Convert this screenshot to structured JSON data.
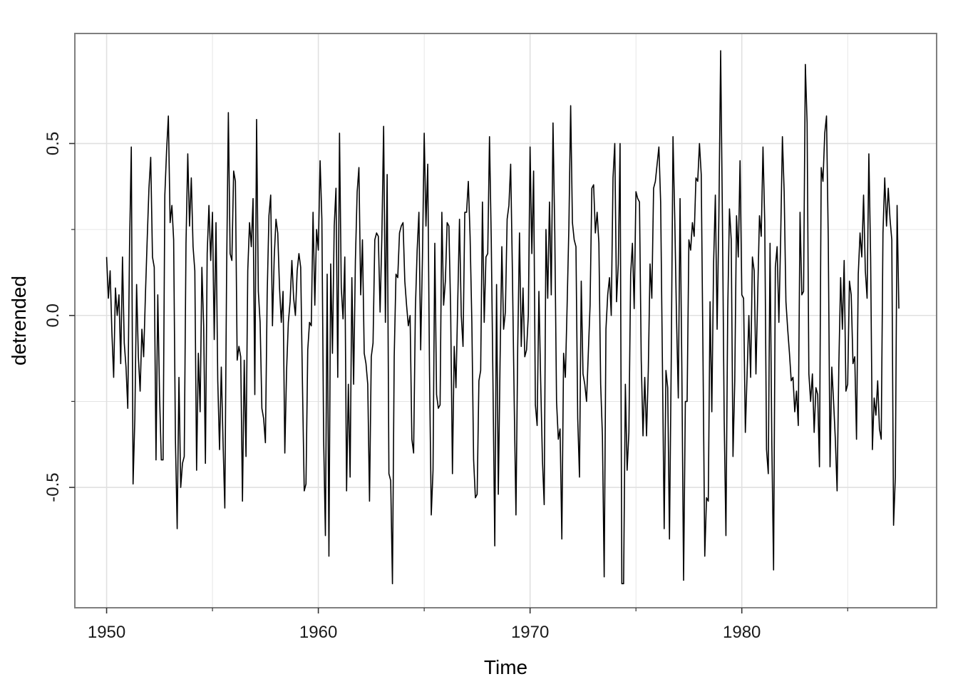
{
  "chart_data": {
    "type": "line",
    "xlabel": "Time",
    "ylabel": "detrended",
    "xlim": [
      1948.5,
      1989.2
    ],
    "ylim": [
      -0.85,
      0.82
    ],
    "x_ticks": [
      1950,
      1960,
      1970,
      1980
    ],
    "x_tick_labels": [
      "1950",
      "1960",
      "1970",
      "1980"
    ],
    "x_minor_ticks": [
      1955,
      1965,
      1975,
      1985
    ],
    "y_ticks": [
      -0.5,
      0.0,
      0.5
    ],
    "y_tick_labels": [
      "-0.5",
      "0.0",
      "0.5"
    ],
    "y_minor_ticks": [
      -0.25,
      0.25
    ],
    "grid": true,
    "colors": {
      "line": "#000000",
      "grid": "#e0e0e0",
      "panel_border": "#7f7f7f",
      "background": "#ffffff"
    },
    "series": [
      {
        "x_start": 1950.0,
        "x_step": 0.0833333,
        "values": [
          0.17,
          0.05,
          0.13,
          -0.05,
          -0.18,
          0.08,
          0.0,
          0.06,
          -0.14,
          0.17,
          -0.08,
          -0.15,
          -0.27,
          0.2,
          0.49,
          -0.49,
          -0.3,
          0.09,
          -0.12,
          -0.22,
          -0.04,
          -0.12,
          0.06,
          0.22,
          0.37,
          0.46,
          0.17,
          0.14,
          -0.42,
          0.06,
          -0.23,
          -0.42,
          -0.42,
          0.35,
          0.48,
          0.58,
          0.27,
          0.32,
          0.22,
          -0.36,
          -0.62,
          -0.18,
          -0.5,
          -0.43,
          -0.41,
          0.21,
          0.47,
          0.26,
          0.4,
          0.2,
          0.13,
          -0.45,
          -0.11,
          -0.28,
          0.14,
          -0.03,
          -0.43,
          0.18,
          0.32,
          0.16,
          0.3,
          -0.07,
          0.27,
          -0.19,
          -0.39,
          -0.15,
          -0.37,
          -0.56,
          0.12,
          0.59,
          0.18,
          0.16,
          0.42,
          0.39,
          -0.13,
          -0.09,
          -0.12,
          -0.54,
          -0.13,
          -0.41,
          0.13,
          0.27,
          0.2,
          0.34,
          -0.23,
          0.57,
          0.07,
          -0.02,
          -0.27,
          -0.3,
          -0.37,
          0.06,
          0.29,
          0.35,
          -0.03,
          0.17,
          0.28,
          0.24,
          0.08,
          -0.02,
          0.07,
          -0.4,
          -0.16,
          -0.02,
          0.04,
          0.16,
          0.05,
          0.0,
          0.13,
          0.18,
          0.14,
          -0.2,
          -0.51,
          -0.49,
          -0.1,
          -0.02,
          -0.03,
          0.3,
          0.03,
          0.25,
          0.19,
          0.45,
          0.28,
          -0.36,
          -0.64,
          0.12,
          -0.7,
          0.15,
          -0.11,
          0.26,
          0.37,
          -0.18,
          0.53,
          0.08,
          -0.01,
          0.17,
          -0.51,
          -0.2,
          -0.47,
          0.11,
          -0.2,
          0.16,
          0.36,
          0.43,
          0.06,
          0.22,
          -0.11,
          -0.14,
          -0.2,
          -0.54,
          -0.12,
          -0.08,
          0.22,
          0.24,
          0.23,
          0.01,
          0.23,
          0.55,
          -0.02,
          0.41,
          -0.46,
          -0.48,
          -0.78,
          -0.12,
          0.12,
          0.11,
          0.24,
          0.26,
          0.27,
          0.1,
          0.03,
          -0.03,
          0.0,
          -0.36,
          -0.4,
          0.02,
          0.19,
          0.3,
          -0.1,
          0.17,
          0.53,
          0.26,
          0.44,
          -0.16,
          -0.58,
          -0.45,
          0.21,
          -0.23,
          -0.27,
          -0.26,
          0.3,
          0.03,
          0.1,
          0.27,
          0.26,
          0.01,
          -0.46,
          -0.09,
          -0.21,
          0.04,
          0.28,
          0.0,
          -0.09,
          0.3,
          0.3,
          0.39,
          0.23,
          -0.02,
          -0.42,
          -0.53,
          -0.52,
          -0.19,
          -0.16,
          0.33,
          -0.02,
          0.17,
          0.18,
          0.52,
          0.22,
          -0.21,
          -0.67,
          0.09,
          -0.52,
          -0.13,
          0.2,
          -0.04,
          0.01,
          0.28,
          0.32,
          0.44,
          0.12,
          -0.25,
          -0.58,
          -0.09,
          0.24,
          -0.09,
          0.08,
          -0.12,
          -0.1,
          0.0,
          0.49,
          0.18,
          0.42,
          -0.26,
          -0.32,
          0.07,
          -0.19,
          -0.42,
          -0.55,
          0.25,
          0.05,
          0.33,
          0.06,
          0.56,
          0.24,
          -0.25,
          -0.36,
          -0.33,
          -0.65,
          -0.11,
          -0.18,
          0.03,
          0.26,
          0.61,
          0.27,
          0.22,
          0.2,
          -0.3,
          -0.47,
          0.1,
          -0.17,
          -0.2,
          -0.25,
          -0.11,
          0.03,
          0.37,
          0.38,
          0.24,
          0.3,
          0.21,
          -0.2,
          -0.35,
          -0.76,
          -0.04,
          0.06,
          0.11,
          0.0,
          0.4,
          0.5,
          0.04,
          0.15,
          0.5,
          -0.78,
          -0.78,
          -0.2,
          -0.45,
          -0.34,
          0.12,
          0.21,
          0.02,
          0.36,
          0.34,
          0.33,
          -0.13,
          -0.35,
          -0.18,
          -0.35,
          -0.16,
          0.15,
          0.05,
          0.37,
          0.39,
          0.44,
          0.49,
          0.33,
          -0.14,
          -0.62,
          -0.16,
          -0.21,
          -0.65,
          -0.13,
          0.52,
          0.28,
          -0.01,
          -0.24,
          0.34,
          -0.15,
          -0.77,
          -0.25,
          -0.25,
          0.22,
          0.19,
          0.27,
          0.23,
          0.4,
          0.39,
          0.5,
          0.41,
          -0.12,
          -0.7,
          -0.53,
          -0.54,
          0.04,
          -0.28,
          0.15,
          0.35,
          -0.04,
          0.29,
          0.77,
          0.29,
          -0.3,
          -0.64,
          0.01,
          0.31,
          0.22,
          -0.41,
          -0.19,
          0.29,
          0.17,
          0.45,
          0.06,
          0.05,
          -0.34,
          -0.17,
          0.0,
          -0.18,
          0.17,
          0.13,
          -0.17,
          0.06,
          0.29,
          0.23,
          0.49,
          0.27,
          -0.39,
          -0.46,
          0.21,
          -0.37,
          -0.74,
          0.14,
          0.2,
          -0.02,
          0.22,
          0.52,
          0.36,
          0.04,
          -0.04,
          -0.11,
          -0.19,
          -0.18,
          -0.28,
          -0.22,
          -0.32,
          0.3,
          0.06,
          0.07,
          0.73,
          0.56,
          -0.17,
          -0.25,
          -0.17,
          -0.34,
          -0.21,
          -0.23,
          -0.44,
          0.43,
          0.39,
          0.53,
          0.58,
          0.22,
          -0.44,
          -0.15,
          -0.25,
          -0.36,
          -0.51,
          -0.14,
          0.11,
          -0.04,
          0.16,
          -0.22,
          -0.2,
          0.1,
          0.06,
          -0.14,
          -0.12,
          -0.36,
          0.12,
          0.24,
          0.17,
          0.35,
          0.13,
          0.05,
          0.47,
          0.17,
          -0.39,
          -0.24,
          -0.29,
          -0.19,
          -0.33,
          -0.36,
          0.24,
          0.4,
          0.26,
          0.37,
          0.28,
          0.22,
          -0.61,
          -0.47,
          0.32,
          0.02
        ]
      }
    ]
  }
}
